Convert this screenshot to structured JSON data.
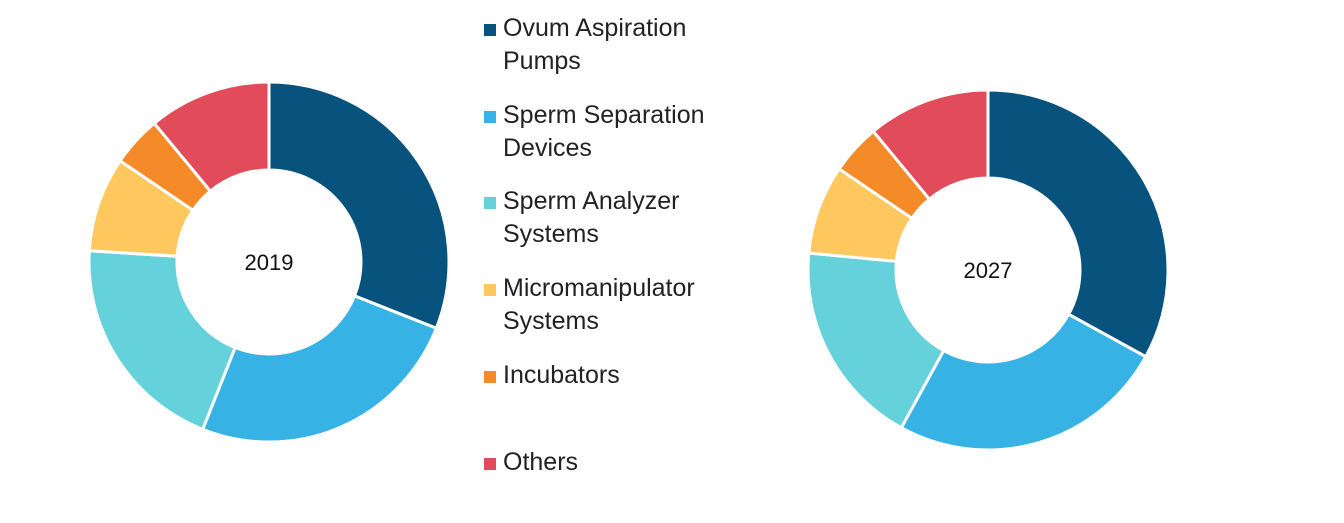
{
  "chart_data": [
    {
      "type": "donut",
      "label": "2019",
      "categories": [
        "Ovum Aspiration Pumps",
        "Sperm Separation Devices",
        "Sperm Analyzer Systems",
        "Micromanipulator Systems",
        "Incubators",
        "Others"
      ],
      "values": [
        31,
        25,
        20,
        8.5,
        4.5,
        11
      ]
    },
    {
      "type": "donut",
      "label": "2027",
      "categories": [
        "Ovum Aspiration Pumps",
        "Sperm Separation Devices",
        "Sperm Analyzer Systems",
        "Micromanipulator Systems",
        "Incubators",
        "Others"
      ],
      "values": [
        33,
        25,
        18.5,
        8,
        4.5,
        11
      ]
    }
  ],
  "legend": [
    {
      "label": "Ovum Aspiration Pumps",
      "color": "#08527e"
    },
    {
      "label": "Sperm Separation Devices",
      "color": "#36b3e4"
    },
    {
      "label": "Sperm Analyzer Systems",
      "color": "#64d1db"
    },
    {
      "label": "Micromanipulator Systems",
      "color": "#fec85f"
    },
    {
      "label": "Incubators",
      "color": "#f58a28"
    },
    {
      "label": "Others",
      "color": "#e24b5a"
    }
  ]
}
